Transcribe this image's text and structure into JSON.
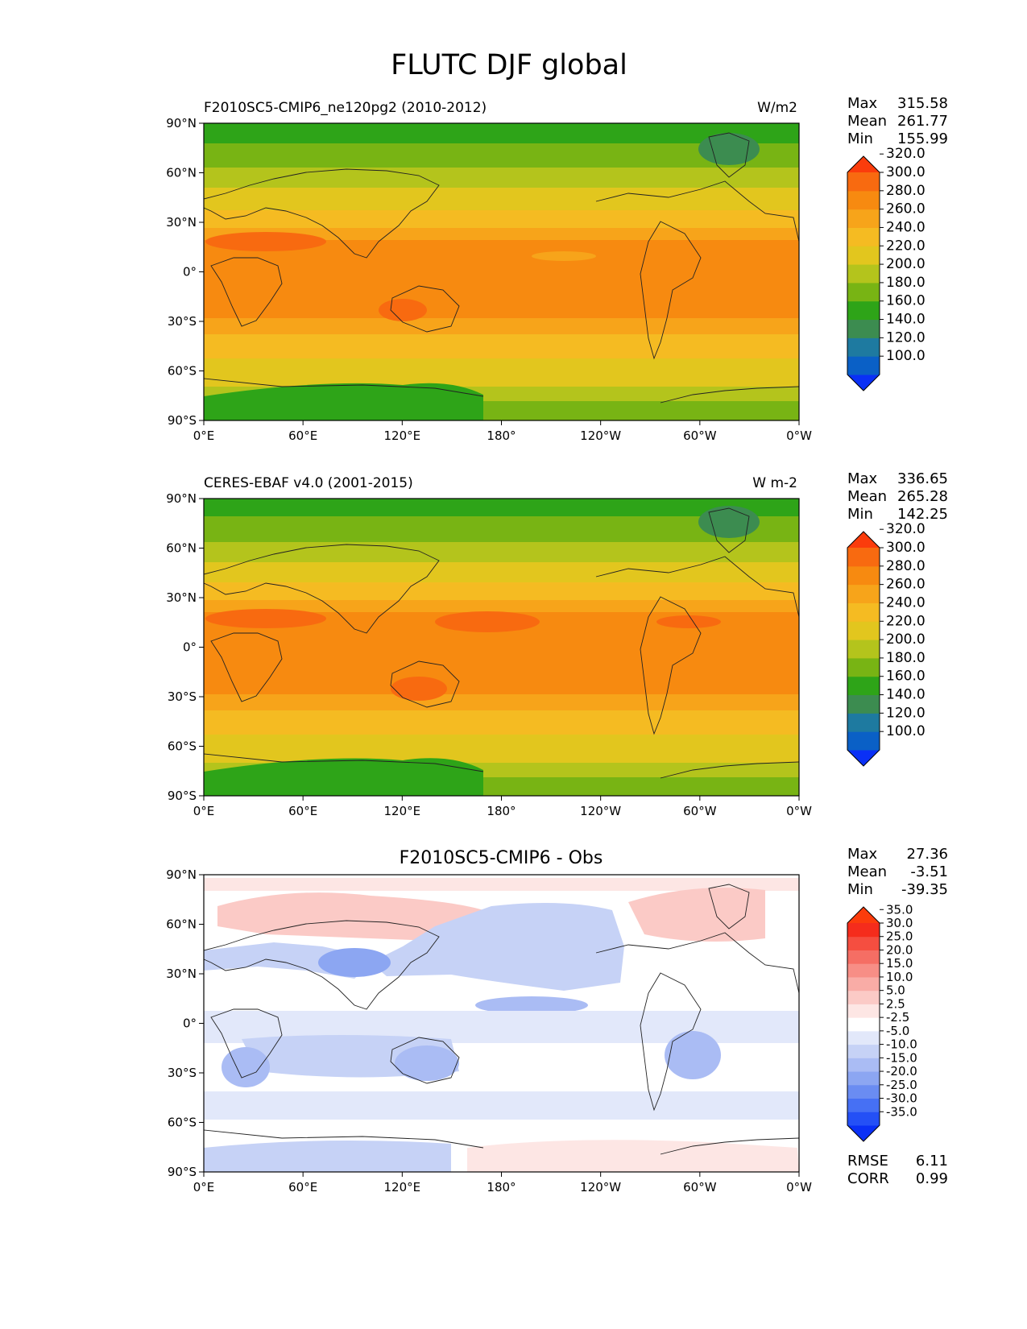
{
  "figure": {
    "title": "FLUTC DJF global"
  },
  "axes": {
    "lat_ticks": [
      "90°N",
      "60°N",
      "30°N",
      "0°",
      "30°S",
      "60°S",
      "90°S"
    ],
    "lon_ticks": [
      "0°E",
      "60°E",
      "120°E",
      "180°",
      "120°W",
      "60°W",
      "0°W"
    ]
  },
  "chart_data": [
    {
      "type": "heatmap",
      "title": "",
      "left_title": "F2010SC5-CMIP6_ne120pg2 (2010-2012)",
      "units": "W/m2",
      "xlim": [
        0,
        360
      ],
      "ylim": [
        -90,
        90
      ],
      "stats": {
        "max_label": "Max",
        "mean_label": "Mean",
        "min_label": "Min",
        "max": "315.58",
        "mean": "261.77",
        "min": "155.99"
      },
      "colorbar": {
        "levels": [
          "100.0",
          "120.0",
          "140.0",
          "160.0",
          "180.0",
          "200.0",
          "220.0",
          "240.0",
          "260.0",
          "280.0",
          "300.0",
          "320.0"
        ],
        "colors": [
          "#0a30f6",
          "#0a60c6",
          "#1e7aa0",
          "#3c8c50",
          "#2ea418",
          "#78b414",
          "#b4c41c",
          "#e2c61e",
          "#f5bb22",
          "#f7a41a",
          "#f78a10",
          "#f86a10",
          "#fb3c0c"
        ],
        "extend": "both"
      }
    },
    {
      "type": "heatmap",
      "title": "",
      "left_title": "CERES-EBAF v4.0 (2001-2015)",
      "units": "W m-2",
      "xlim": [
        0,
        360
      ],
      "ylim": [
        -90,
        90
      ],
      "stats": {
        "max_label": "Max",
        "mean_label": "Mean",
        "min_label": "Min",
        "max": "336.65",
        "mean": "265.28",
        "min": "142.25"
      },
      "colorbar": {
        "levels": [
          "100.0",
          "120.0",
          "140.0",
          "160.0",
          "180.0",
          "200.0",
          "220.0",
          "240.0",
          "260.0",
          "280.0",
          "300.0",
          "320.0"
        ],
        "colors": [
          "#0a30f6",
          "#0a60c6",
          "#1e7aa0",
          "#3c8c50",
          "#2ea418",
          "#78b414",
          "#b4c41c",
          "#e2c61e",
          "#f5bb22",
          "#f7a41a",
          "#f78a10",
          "#f86a10",
          "#fb3c0c"
        ],
        "extend": "both"
      }
    },
    {
      "type": "heatmap",
      "title": "F2010SC5-CMIP6 - Obs",
      "left_title": "",
      "units": "",
      "xlim": [
        0,
        360
      ],
      "ylim": [
        -90,
        90
      ],
      "stats": {
        "max_label": "Max",
        "mean_label": "Mean",
        "min_label": "Min",
        "max": "27.36",
        "mean": "-3.51",
        "min": "-39.35"
      },
      "metrics": {
        "rmse_label": "RMSE",
        "corr_label": "CORR",
        "rmse": "6.11",
        "corr": "0.99"
      },
      "colorbar": {
        "levels": [
          "-35.0",
          "-30.0",
          "-25.0",
          "-20.0",
          "-15.0",
          "-10.0",
          "-5.0",
          "-2.5",
          "2.5",
          "5.0",
          "10.0",
          "15.0",
          "20.0",
          "25.0",
          "30.0",
          "35.0"
        ],
        "colors": [
          "#0a30f6",
          "#2450f6",
          "#4670f4",
          "#6a8cf2",
          "#8ca6f2",
          "#aabcf4",
          "#c6d2f6",
          "#e2e8fa",
          "#ffffff",
          "#fde6e4",
          "#fbcac6",
          "#f9aca6",
          "#f78e86",
          "#f56e64",
          "#f54e40",
          "#f52c1c",
          "#fb3c0c"
        ],
        "extend": "both"
      }
    }
  ]
}
